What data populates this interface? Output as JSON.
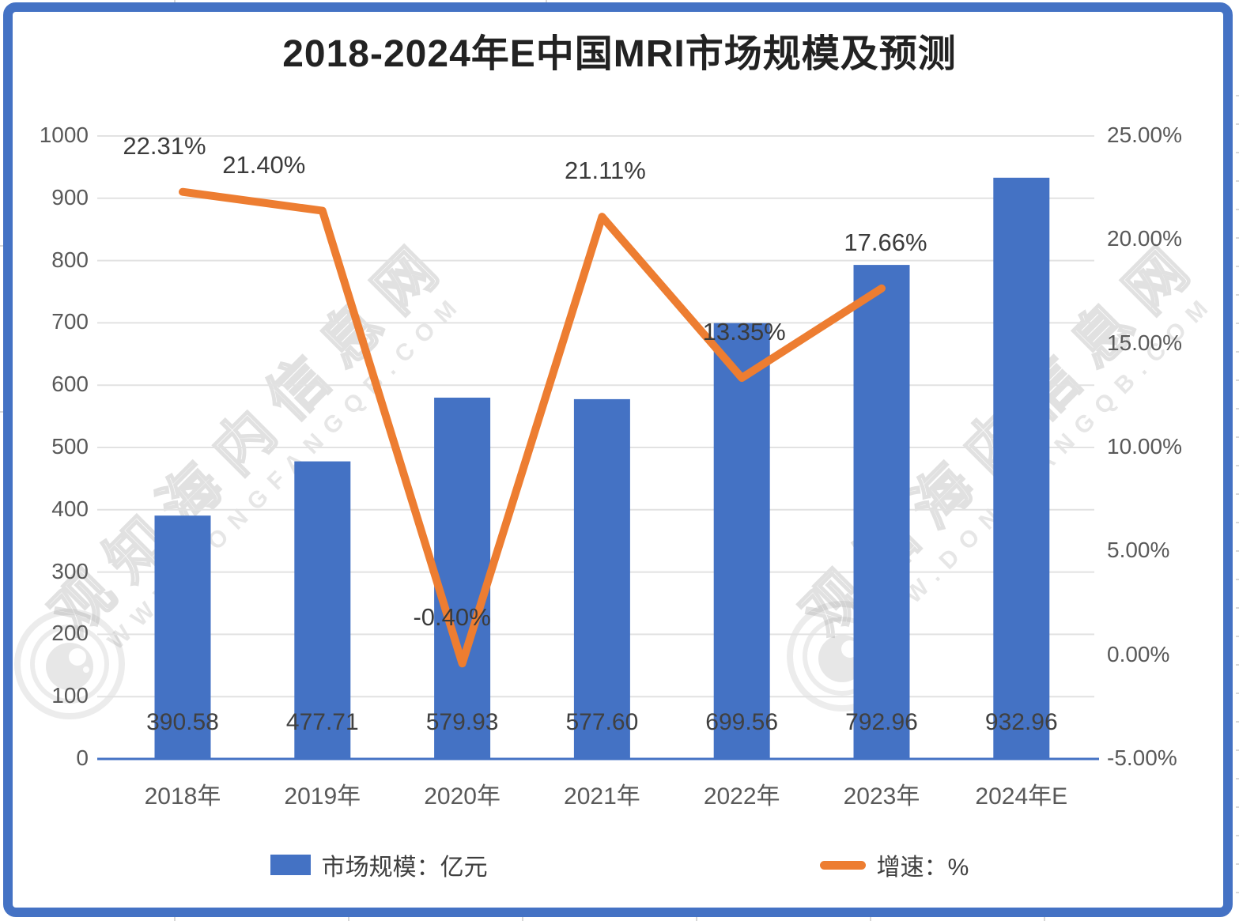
{
  "title": "2018-2024年E中国MRI市场规模及预测",
  "frame_color": "#4472C4",
  "watermark": {
    "site_name": "观知海内信息网",
    "url": "WWW.DONGFANGQB.COM"
  },
  "chart_data": {
    "type": "bar",
    "combo": [
      "bar",
      "line"
    ],
    "title": "2018-2024年E中国MRI市场规模及预测",
    "categories": [
      "2018年",
      "2019年",
      "2020年",
      "2021年",
      "2022年",
      "2023年",
      "2024年E"
    ],
    "series": [
      {
        "name": "市场规模：亿元",
        "type": "bar",
        "axis": "left",
        "color": "#4472C4",
        "values": [
          390.58,
          477.71,
          579.93,
          577.6,
          699.56,
          792.96,
          932.96
        ],
        "value_labels": [
          "390.58",
          "477.71",
          "579.93",
          "577.60",
          "699.56",
          "792.96",
          "932.96"
        ]
      },
      {
        "name": "增速：%",
        "type": "line",
        "axis": "right",
        "color": "#ED7D31",
        "values": [
          22.31,
          21.4,
          -0.4,
          21.11,
          13.35,
          17.66
        ],
        "value_labels": [
          "22.31%",
          "21.40%",
          "-0.40%",
          "21.11%",
          "13.35%",
          "17.66%"
        ]
      }
    ],
    "left_axis": {
      "min": 0,
      "max": 1000,
      "step": 100,
      "tick_labels": [
        "1000",
        "900",
        "800",
        "700",
        "600",
        "500",
        "400",
        "300",
        "200",
        "100",
        "0"
      ]
    },
    "right_axis": {
      "min": -5,
      "max": 25,
      "step": 5,
      "tick_labels": [
        "25.00%",
        "20.00%",
        "15.00%",
        "10.00%",
        "5.00%",
        "0.00%",
        "-5.00%"
      ]
    },
    "grid": true,
    "legend_position": "bottom",
    "colors": {
      "grid": "#E2E2E2",
      "axis_line": "#4472C4",
      "value_text": "#404040",
      "tick_text": "#595959"
    }
  }
}
